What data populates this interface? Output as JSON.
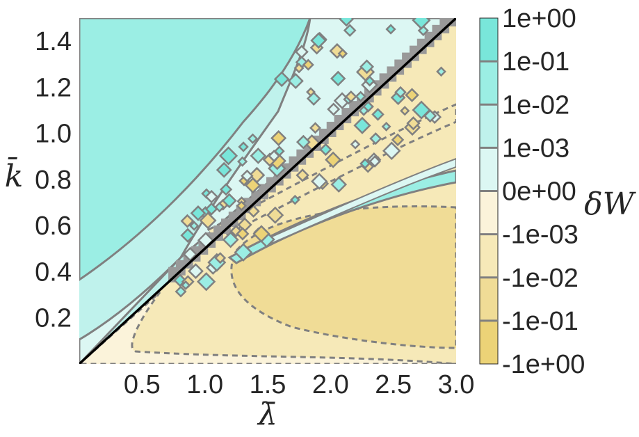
{
  "chart_data": {
    "type": "heatmap",
    "subtype": "filled-contour",
    "title": "",
    "xlabel": "λ̄",
    "ylabel": "k̄",
    "xlim": [
      0.0,
      3.0
    ],
    "ylim": [
      0.0,
      1.5
    ],
    "x_ticks": [
      "0.5",
      "1.0",
      "1.5",
      "2.0",
      "2.5",
      "3.0"
    ],
    "y_ticks": [
      "0.2",
      "0.4",
      "0.6",
      "0.8",
      "1.0",
      "1.2",
      "1.4"
    ],
    "grid": false,
    "diagonal_line": {
      "from": [
        0.0,
        0.0
      ],
      "to": [
        3.0,
        1.5
      ],
      "color": "#000000"
    },
    "colorbar": {
      "label": "δW",
      "levels": [
        "1e+00",
        "1e-01",
        "1e-02",
        "1e-03",
        "0e+00",
        "-1e-03",
        "-1e-02",
        "-1e-01",
        "-1e+00"
      ],
      "colors": [
        "#79e6da",
        "#9beee4",
        "#bff2ec",
        "#dcf7f3",
        "#fbf3da",
        "#f6e9b8",
        "#f0dc96",
        "#ecd377"
      ]
    },
    "colors": {
      "contour_line": "#808080",
      "masked_region": "#999999"
    }
  }
}
